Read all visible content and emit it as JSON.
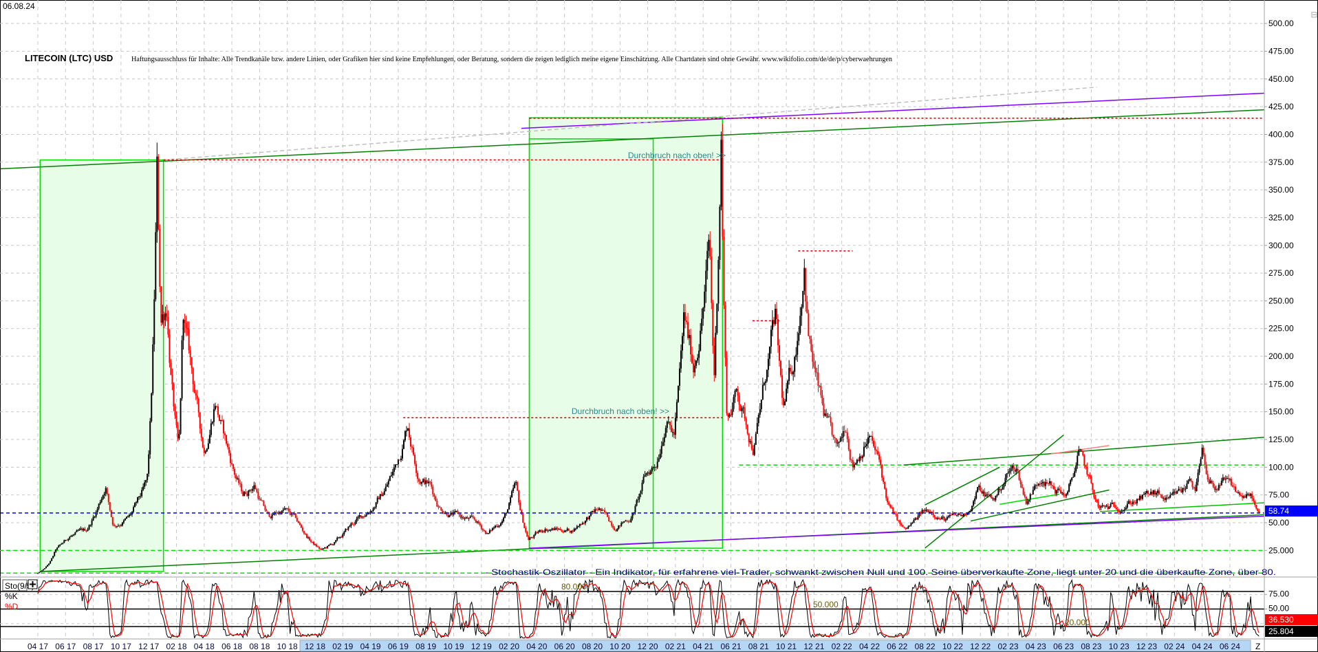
{
  "header": {
    "date": "06.08.24",
    "title": "LITECOIN (LTC) USD",
    "disclaimer": "Haftungsausschluss für Inhalte: Alle Trendkanäle bzw. andere Linien, oder Grafiken hier sind keine Empfehlungen, oder Beratung, sondern die zeigen lediglich meine eigene Einschätzung. Alle Chartdaten sind ohne Gewähr.  www.wikifolio.com/de/de/p/cyberwaehrungen"
  },
  "colors": {
    "up": "#000000",
    "down": "#ff0000",
    "green": "#008000",
    "lime": "#00e000",
    "purple": "#8000ff",
    "red_dotted": "#cc0000",
    "blue_price": "#0000ff",
    "box_fill": "#e8fde8",
    "annotation": "#2a8a8a",
    "stoch_k": "#000000",
    "stoch_d": "#ff0000",
    "axis_highlight": "#b6d6f6"
  },
  "chart_data": {
    "type": "candlestick",
    "title": "LITECOIN (LTC) USD",
    "ylim": [
      0,
      510
    ],
    "yticks": [
      "500.00",
      "475.00",
      "450.00",
      "425.00",
      "400.00",
      "375.00",
      "350.00",
      "325.00",
      "300.00",
      "275.00",
      "250.00",
      "225.00",
      "200.00",
      "175.00",
      "150.00",
      "125.00",
      "100.00",
      "75.00",
      "50.00",
      "25.000"
    ],
    "ytick_values": [
      500,
      475,
      450,
      425,
      400,
      375,
      350,
      325,
      300,
      275,
      250,
      225,
      200,
      175,
      150,
      125,
      100,
      75,
      50,
      25
    ],
    "xticks": [
      "04 17",
      "06 17",
      "08 17",
      "10 17",
      "12 17",
      "02 18",
      "04 18",
      "06 18",
      "08 18",
      "10 18",
      "12 18",
      "02 19",
      "04 19",
      "06 19",
      "08 19",
      "10 19",
      "12 19",
      "02 20",
      "04 20",
      "06 20",
      "08 20",
      "10 20",
      "12 20",
      "02 21",
      "04 21",
      "06 21",
      "08 21",
      "10 21",
      "12 21",
      "02 22",
      "04 22",
      "06 22",
      "08 22",
      "10 22",
      "12 22",
      "02 23",
      "04 23",
      "06 23",
      "08 23",
      "10 23",
      "12 23",
      "02 24",
      "04 24",
      "06 24"
    ],
    "xtick_end": "Z",
    "grid": true,
    "last_price": "58.74",
    "last_price_value": 58.74,
    "price_path": [
      [
        "2017-04-01",
        4.5
      ],
      [
        "2017-05-10",
        25
      ],
      [
        "2017-06-10",
        38
      ],
      [
        "2017-07-15",
        42
      ],
      [
        "2017-08-28",
        85
      ],
      [
        "2017-09-15",
        48
      ],
      [
        "2017-10-20",
        55
      ],
      [
        "2017-11-28",
        85
      ],
      [
        "2017-12-19",
        360
      ],
      [
        "2017-12-28",
        230
      ],
      [
        "2018-01-10",
        250
      ],
      [
        "2018-02-06",
        110
      ],
      [
        "2018-02-15",
        235
      ],
      [
        "2018-03-10",
        170
      ],
      [
        "2018-04-01",
        115
      ],
      [
        "2018-04-25",
        165
      ],
      [
        "2018-05-20",
        120
      ],
      [
        "2018-06-25",
        75
      ],
      [
        "2018-07-20",
        85
      ],
      [
        "2018-08-20",
        55
      ],
      [
        "2018-09-25",
        62
      ],
      [
        "2018-10-20",
        52
      ],
      [
        "2018-11-25",
        32
      ],
      [
        "2018-12-15",
        25
      ],
      [
        "2019-01-15",
        32
      ],
      [
        "2019-02-20",
        48
      ],
      [
        "2019-03-25",
        60
      ],
      [
        "2019-04-25",
        75
      ],
      [
        "2019-05-25",
        100
      ],
      [
        "2019-06-22",
        142
      ],
      [
        "2019-07-15",
        95
      ],
      [
        "2019-08-10",
        85
      ],
      [
        "2019-08-30",
        65
      ],
      [
        "2019-10-15",
        55
      ],
      [
        "2019-11-20",
        50
      ],
      [
        "2019-12-15",
        40
      ],
      [
        "2020-01-20",
        55
      ],
      [
        "2020-02-15",
        82
      ],
      [
        "2020-03-13",
        35
      ],
      [
        "2020-04-20",
        45
      ],
      [
        "2020-06-15",
        43
      ],
      [
        "2020-07-20",
        55
      ],
      [
        "2020-08-15",
        62
      ],
      [
        "2020-09-20",
        47
      ],
      [
        "2020-10-25",
        55
      ],
      [
        "2020-11-25",
        90
      ],
      [
        "2020-12-20",
        105
      ],
      [
        "2021-01-10",
        150
      ],
      [
        "2021-01-28",
        130
      ],
      [
        "2021-02-20",
        230
      ],
      [
        "2021-03-10",
        190
      ],
      [
        "2021-04-15",
        300
      ],
      [
        "2021-04-25",
        180
      ],
      [
        "2021-05-10",
        410
      ],
      [
        "2021-05-23",
        145
      ],
      [
        "2021-06-15",
        170
      ],
      [
        "2021-07-20",
        120
      ],
      [
        "2021-08-15",
        180
      ],
      [
        "2021-09-07",
        230
      ],
      [
        "2021-09-25",
        150
      ],
      [
        "2021-10-20",
        200
      ],
      [
        "2021-11-10",
        295
      ],
      [
        "2021-11-20",
        220
      ],
      [
        "2021-12-05",
        180
      ],
      [
        "2021-12-20",
        150
      ],
      [
        "2022-01-22",
        110
      ],
      [
        "2022-02-10",
        140
      ],
      [
        "2022-02-25",
        105
      ],
      [
        "2022-03-30",
        130
      ],
      [
        "2022-04-25",
        100
      ],
      [
        "2022-05-12",
        65
      ],
      [
        "2022-06-18",
        42
      ],
      [
        "2022-07-25",
        58
      ],
      [
        "2022-08-15",
        62
      ],
      [
        "2022-09-15",
        53
      ],
      [
        "2022-10-25",
        56
      ],
      [
        "2022-11-10",
        65
      ],
      [
        "2022-11-25",
        80
      ],
      [
        "2022-12-30",
        70
      ],
      [
        "2023-01-30",
        95
      ],
      [
        "2023-02-20",
        100
      ],
      [
        "2023-03-10",
        70
      ],
      [
        "2023-04-15",
        95
      ],
      [
        "2023-05-10",
        80
      ],
      [
        "2023-06-10",
        75
      ],
      [
        "2023-07-03",
        113
      ],
      [
        "2023-07-25",
        90
      ],
      [
        "2023-08-18",
        62
      ],
      [
        "2023-09-15",
        63
      ],
      [
        "2023-10-30",
        70
      ],
      [
        "2023-11-20",
        72
      ],
      [
        "2023-12-20",
        75
      ],
      [
        "2024-01-20",
        68
      ],
      [
        "2024-02-25",
        80
      ],
      [
        "2024-03-05",
        95
      ],
      [
        "2024-03-15",
        80
      ],
      [
        "2024-04-01",
        110
      ],
      [
        "2024-04-15",
        80
      ],
      [
        "2024-05-20",
        85
      ],
      [
        "2024-06-20",
        75
      ],
      [
        "2024-07-20",
        72
      ],
      [
        "2024-08-05",
        52
      ],
      [
        "2024-08-06",
        58.74
      ]
    ],
    "boxes": [
      {
        "from": [
          "2017-04-06",
          6
        ],
        "to": [
          "2018-01-03",
          377
        ],
        "fill": true
      },
      {
        "from": [
          "2020-03-15",
          27
        ],
        "to": [
          "2021-05-13",
          415
        ],
        "fill": true
      },
      {
        "from": [
          "2020-03-15",
          27
        ],
        "to": [
          "2020-12-13",
          396
        ],
        "fill": false
      }
    ],
    "lines": [
      {
        "p1": [
          "2017-01-08",
          369
        ],
        "p2": [
          "2024-11-18",
          424
        ],
        "color": "#008000",
        "style": "solid"
      },
      {
        "p1": [
          "2020-02-28",
          405.5
        ],
        "p2": [
          "2024-11-18",
          439
        ],
        "color": "#8000ff",
        "style": "solid"
      },
      {
        "p1": [
          "2017-04-06",
          6
        ],
        "p2": [
          "2024-11-18",
          59
        ],
        "color": "#008000",
        "style": "solid"
      },
      {
        "p1": [
          "2020-03-15",
          27
        ],
        "p2": [
          "2024-11-18",
          57.6
        ],
        "color": "#8000ff",
        "style": "solid"
      },
      {
        "p1": [
          "2018-01-03",
          377
        ],
        "p2": [
          "2023-08-13",
          442.6
        ],
        "color": "#c0c0c0",
        "style": "dashed"
      },
      {
        "p1": [
          "2020-03-15",
          414.6
        ],
        "p2": [
          "2024-11-18",
          414.6
        ],
        "color": "#cc0000",
        "style": "dotted"
      },
      {
        "p1": [
          "2018-01-03",
          377
        ],
        "p2": [
          "2021-05-13",
          377
        ],
        "color": "#cc0000",
        "style": "dotted"
      },
      {
        "p1": [
          "2019-06-12",
          144.6
        ],
        "p2": [
          "2021-05-13",
          144.6
        ],
        "color": "#cc0000",
        "style": "dotted"
      },
      {
        "p1": [
          "2021-07-18",
          232
        ],
        "p2": [
          "2021-09-20",
          232
        ],
        "color": "#cc0000",
        "style": "dotted"
      },
      {
        "p1": [
          "2021-10-27",
          295
        ],
        "p2": [
          "2022-02-25",
          295
        ],
        "color": "#cc0000",
        "style": "dotted"
      },
      {
        "p1": [
          "2021-06-19",
          102
        ],
        "p2": [
          "2024-11-18",
          102
        ],
        "color": "#00e000",
        "style": "dashed"
      },
      {
        "p1": [
          "2017-01-08",
          25
        ],
        "p2": [
          "2024-11-18",
          25
        ],
        "color": "#00e000",
        "style": "dashed"
      },
      {
        "p1": [
          "2017-01-08",
          4.6
        ],
        "p2": [
          "2024-11-18",
          4.6
        ],
        "color": "#00e000",
        "style": "dashed"
      },
      {
        "p1": [
          "2022-06-15",
          102
        ],
        "p2": [
          "2024-11-18",
          130
        ],
        "color": "#008000",
        "style": "solid"
      },
      {
        "p1": [
          "2022-08-01",
          27
        ],
        "p2": [
          "2023-06-01",
          129
        ],
        "color": "#008000",
        "style": "solid"
      },
      {
        "p1": [
          "2022-08-01",
          66
        ],
        "p2": [
          "2023-01-13",
          100
        ],
        "color": "#008000",
        "style": "solid"
      },
      {
        "p1": [
          "2022-11-10",
          51.5
        ],
        "p2": [
          "2023-09-10",
          79.5
        ],
        "color": "#008000",
        "style": "solid"
      },
      {
        "p1": [
          "2023-01-13",
          66.6
        ],
        "p2": [
          "2023-05-22",
          75.7
        ],
        "color": "#00e000",
        "style": "solid"
      },
      {
        "p1": [
          "2023-05-04",
          112
        ],
        "p2": [
          "2023-09-10",
          119.6
        ],
        "color": "#ff8080",
        "style": "solid"
      },
      {
        "p1": [
          "2023-08-20",
          60
        ],
        "p2": [
          "2024-11-18",
          70
        ],
        "color": "#00c000",
        "style": "solid"
      }
    ],
    "annotations": [
      "Durchbruch nach oben! >>",
      "Durchbruch nach oben! >>"
    ],
    "indicator": {
      "name": "Sto(9/5)",
      "k_label": "%K",
      "d_label": "%D",
      "levels": [
        80,
        50,
        20
      ],
      "level_labels": [
        "80.000",
        "50.000",
        "20.000"
      ],
      "yticks": [
        "75.00",
        "50.00"
      ],
      "d_value": "36.530",
      "k_value": "25.804",
      "description": "- Stochastik-Oszillator - Ein Indikator, für erfahrene viel-Trader, schwankt zwischen Null und 100. Seine überverkaufte Zone, liegt unter 20 und die überkaufte Zone, über 80."
    }
  }
}
